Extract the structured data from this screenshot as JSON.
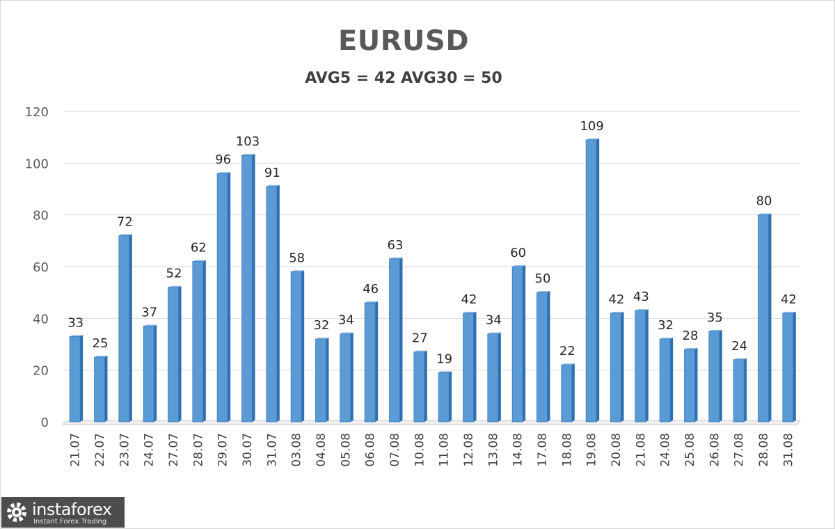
{
  "chart_data": {
    "type": "bar",
    "title": "EURUSD",
    "subtitle": "AVG5 = 42 AVG30 = 50",
    "categories": [
      "21.07",
      "22.07",
      "23.07",
      "24.07",
      "27.07",
      "28.07",
      "29.07",
      "30.07",
      "31.07",
      "03.08",
      "04.08",
      "05.08",
      "06.08",
      "07.08",
      "10.08",
      "11.08",
      "12.08",
      "13.08",
      "14.08",
      "17.08",
      "18.08",
      "19.08",
      "20.08",
      "21.08",
      "24.08",
      "25.08",
      "26.08",
      "27.08",
      "28.08",
      "31.08"
    ],
    "values": [
      33,
      25,
      72,
      37,
      52,
      62,
      96,
      103,
      91,
      58,
      32,
      34,
      46,
      63,
      27,
      19,
      42,
      34,
      60,
      50,
      22,
      109,
      42,
      43,
      32,
      28,
      35,
      24,
      80,
      42
    ],
    "ylim": [
      0,
      120
    ],
    "yticks": [
      0,
      20,
      40,
      60,
      80,
      100,
      120
    ],
    "grid": true,
    "data_labels": true,
    "bar_color": "#5b9bd5",
    "bar_shade_color": "#2f6fad"
  },
  "watermark": {
    "name": "instaforex",
    "tagline": "Instant Forex Trading"
  }
}
